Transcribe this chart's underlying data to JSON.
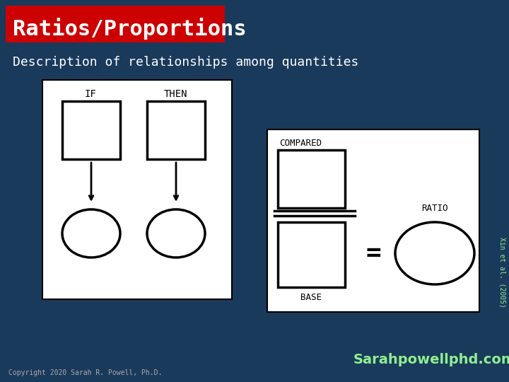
{
  "bg_color": "#1a3a5c",
  "title_bg_color": "#cc0000",
  "title_text": "Ratios/Proportions",
  "title_color": "#ffffff",
  "subtitle_text": "Description of relationships among quantities",
  "subtitle_color": "#ffffff",
  "citation_text": "Xin et al. (2005)",
  "citation_color": "#90ee90",
  "copyright_text": "Copyright 2020 Sarah R. Powell, Ph.D.",
  "copyright_color": "#aaaaaa",
  "sarahpowell_text": "Sarahpowellphd.com",
  "sarahpowell_color": "#90ee90",
  "panel1_bg": "#ffffff",
  "panel2_bg": "#ffffff",
  "box_color": "#000000",
  "arrow_color": "#000000"
}
